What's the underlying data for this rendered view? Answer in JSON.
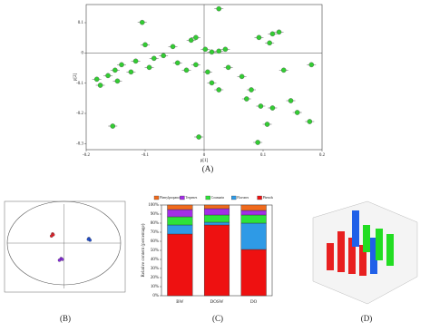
{
  "chart_data": [
    {
      "type": "scatter",
      "xlabel": "p[1]",
      "ylabel": "p[2]",
      "color": "#33cc33",
      "xlim": [
        -0.2,
        0.2
      ],
      "ylim": [
        -0.32,
        0.16
      ],
      "xticks": [
        -0.2,
        -0.1,
        0,
        0.1,
        0.2
      ],
      "yticks": [
        0.1,
        0,
        -0.1,
        -0.2,
        -0.3
      ],
      "series": [
        {
          "name": null,
          "color": "#33cc33",
          "x": [
            0.025,
            -0.105,
            -0.1,
            -0.022,
            -0.014,
            0.093,
            0.116,
            0.127,
            0.111,
            0.002,
            0.013,
            0.025,
            0.036,
            -0.053,
            -0.069,
            -0.085,
            -0.116,
            -0.14,
            -0.151,
            -0.163,
            -0.182,
            -0.176,
            -0.147,
            -0.124,
            -0.093,
            -0.045,
            -0.03,
            -0.014,
            0.006,
            0.013,
            0.025,
            0.041,
            0.064,
            0.08,
            0.072,
            0.096,
            0.116,
            0.135,
            0.147,
            0.158,
            0.179,
            0.182,
            0.107,
            0.091,
            -0.009,
            -0.155
          ],
          "values": [
            0.146,
            0.101,
            0.027,
            0.042,
            0.051,
            0.051,
            0.063,
            0.069,
            0.033,
            0.012,
            0.003,
            0.006,
            0.012,
            0.021,
            -0.009,
            -0.018,
            -0.027,
            -0.039,
            -0.057,
            -0.075,
            -0.087,
            -0.107,
            -0.093,
            -0.063,
            -0.048,
            -0.033,
            -0.057,
            -0.039,
            -0.063,
            -0.099,
            -0.122,
            -0.048,
            -0.078,
            -0.122,
            -0.152,
            -0.176,
            -0.182,
            -0.057,
            -0.158,
            -0.197,
            -0.227,
            -0.039,
            -0.236,
            -0.296,
            -0.278,
            -0.242
          ]
        }
      ]
    },
    {
      "type": "scatter",
      "xlim": [
        -1,
        1
      ],
      "ylim": [
        -1,
        1
      ],
      "series": [
        {
          "name": null,
          "color": "#e8202a",
          "x": [
            -0.2,
            -0.22,
            -0.19
          ],
          "values": [
            0.22,
            0.17,
            0.2
          ]
        },
        {
          "name": null,
          "color": "#1f4fd6",
          "x": [
            0.44,
            0.46,
            0.43
          ],
          "values": [
            0.11,
            0.07,
            0.09
          ]
        },
        {
          "name": null,
          "color": "#8a2be2",
          "x": [
            -0.05,
            -0.08,
            -0.03
          ],
          "values": [
            -0.37,
            -0.41,
            -0.39
          ]
        }
      ]
    },
    {
      "type": "stacked_bar",
      "ylabel": "Relative content (percentage)",
      "categories": [
        "BW",
        "DOSW",
        "DO"
      ],
      "ylim": [
        0,
        100
      ],
      "yticks": [
        {
          "value": 0,
          "label": "0%"
        },
        {
          "value": 10,
          "label": "10%"
        },
        {
          "value": 20,
          "label": "20%"
        },
        {
          "value": 30,
          "label": "30%"
        },
        {
          "value": 40,
          "label": "40%"
        },
        {
          "value": 50,
          "label": "50%"
        },
        {
          "value": 60,
          "label": "60%"
        },
        {
          "value": 70,
          "label": "70%"
        },
        {
          "value": 80,
          "label": "80%"
        },
        {
          "value": 90,
          "label": "90%"
        },
        {
          "value": 100,
          "label": "100%"
        }
      ],
      "series": [
        {
          "name": "Phenols",
          "color": "#ee1111",
          "values": [
            68,
            78,
            51
          ]
        },
        {
          "name": "Flavones",
          "color": "#2e9ae6",
          "values": [
            10,
            3,
            29
          ]
        },
        {
          "name": "Coumarin",
          "color": "#2ee23a",
          "values": [
            9,
            8,
            9
          ]
        },
        {
          "name": "Terpenes",
          "color": "#a32ee6",
          "values": [
            8,
            7,
            5
          ]
        },
        {
          "name": "Phenylpropanoids",
          "color": "#f06a1c",
          "values": [
            5,
            4,
            6
          ]
        }
      ]
    }
  ],
  "captions": [
    "(A)",
    "(B)",
    "(C)",
    "(D)"
  ]
}
